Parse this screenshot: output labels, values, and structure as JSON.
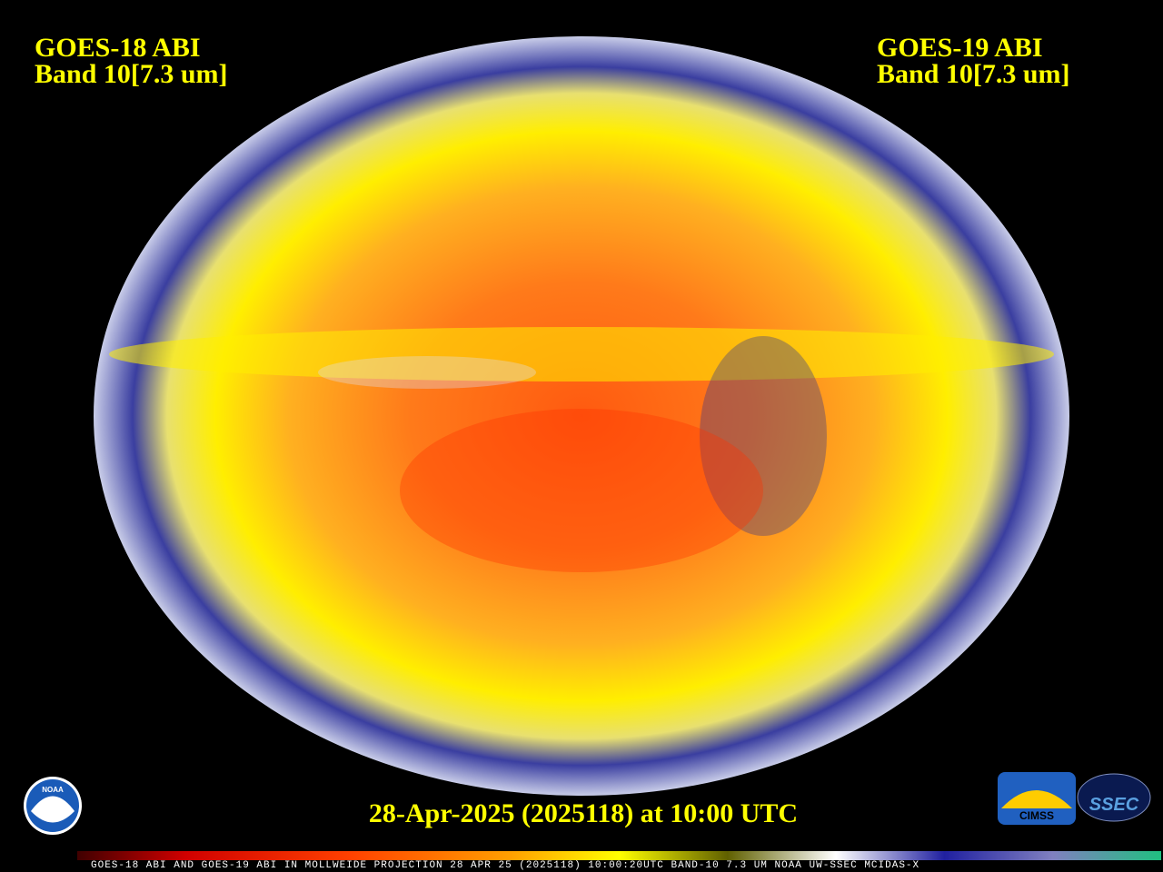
{
  "left_label": {
    "satellite": "GOES-18 ABI",
    "band": "Band 10[7.3 um]"
  },
  "right_label": {
    "satellite": "GOES-19 ABI",
    "band": "Band 10[7.3 um]"
  },
  "timestamp": "28-Apr-2025 (2025118) at 10:00 UTC",
  "colorbar_caption": "GOES-18 ABI AND GOES-19 ABI IN MOLLWEIDE PROJECTION 28 APR 25 (2025118) 10:00:20UTC BAND-10 7.3 UM NOAA UW-SSEC MCIDAS-X",
  "logos": {
    "noaa": "NOAA",
    "cimss": "CIMSS",
    "ssec": "SSEC"
  }
}
